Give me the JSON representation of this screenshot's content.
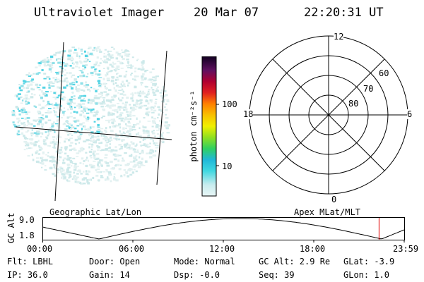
{
  "header": {
    "title": "Ultraviolet Imager",
    "date": "20 Mar 07",
    "time": "22:20:31 UT"
  },
  "colorbar": {
    "unit_label": "photon cm⁻²s⁻¹",
    "ticks": [
      "100",
      "10"
    ]
  },
  "polar": {
    "mlt_labels": {
      "top": "12",
      "left": "18",
      "right": "6",
      "bottom": "0"
    },
    "lat_labels": [
      "60",
      "70",
      "80"
    ]
  },
  "map_labels": {
    "left": "Geographic Lat/Lon",
    "right": "Apex MLat/MLT"
  },
  "altitude_plot": {
    "ylabel": "GC Alt",
    "yticks": [
      "9.0",
      "1.8"
    ],
    "xticks": [
      "00:00",
      "06:00",
      "12:00",
      "18:00",
      "23:59"
    ],
    "marker_time": "22:20"
  },
  "info": {
    "filter": "Flt: LBHL",
    "ip": "IP: 36.0",
    "door": "Door: Open",
    "gain": "Gain: 14",
    "mode": "Mode: Normal",
    "dsp": "Dsp:   -0.0",
    "gc_alt": "GC Alt: 2.9 Re",
    "seq": "Seq: 39",
    "glat": "GLat:  -3.9",
    "glon": "GLon:   1.0"
  }
}
